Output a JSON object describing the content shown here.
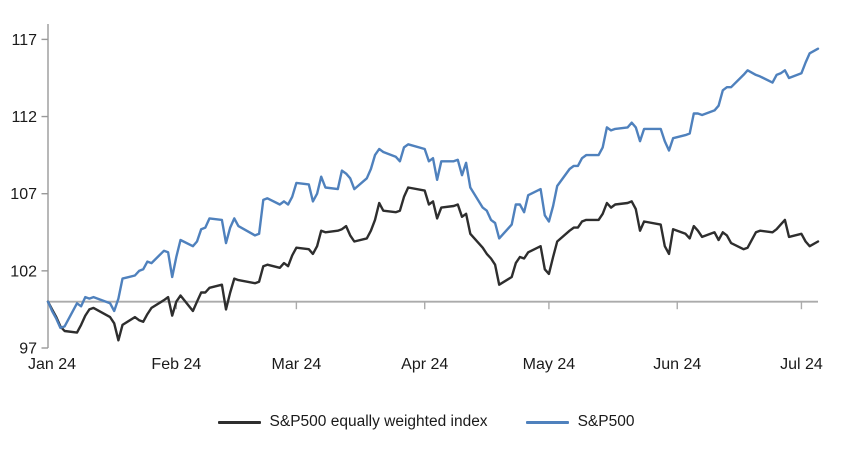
{
  "chart_data": {
    "type": "line",
    "title": "",
    "legend_position": "bottom",
    "grid": false,
    "x_axis": {
      "tick_dates": [
        "2024-01-01",
        "2024-02-01",
        "2024-03-01",
        "2024-04-01",
        "2024-05-01",
        "2024-06-01",
        "2024-07-01"
      ],
      "tick_labels": [
        "Jan 24",
        "Feb 24",
        "Mar 24",
        "Apr 24",
        "May 24",
        "Jun 24",
        "Jul 24"
      ],
      "baseline_value": 100
    },
    "y_axis": {
      "min": 97,
      "max": 118,
      "ticks": [
        97,
        102,
        107,
        112,
        117
      ]
    },
    "dates": [
      "2024-01-01",
      "2024-01-02",
      "2024-01-03",
      "2024-01-04",
      "2024-01-05",
      "2024-01-08",
      "2024-01-09",
      "2024-01-10",
      "2024-01-11",
      "2024-01-12",
      "2024-01-16",
      "2024-01-17",
      "2024-01-18",
      "2024-01-19",
      "2024-01-22",
      "2024-01-23",
      "2024-01-24",
      "2024-01-25",
      "2024-01-26",
      "2024-01-29",
      "2024-01-30",
      "2024-01-31",
      "2024-02-01",
      "2024-02-02",
      "2024-02-05",
      "2024-02-06",
      "2024-02-07",
      "2024-02-08",
      "2024-02-09",
      "2024-02-12",
      "2024-02-13",
      "2024-02-14",
      "2024-02-15",
      "2024-02-16",
      "2024-02-20",
      "2024-02-21",
      "2024-02-22",
      "2024-02-23",
      "2024-02-26",
      "2024-02-27",
      "2024-02-28",
      "2024-02-29",
      "2024-03-01",
      "2024-03-04",
      "2024-03-05",
      "2024-03-06",
      "2024-03-07",
      "2024-03-08",
      "2024-03-11",
      "2024-03-12",
      "2024-03-13",
      "2024-03-14",
      "2024-03-15",
      "2024-03-18",
      "2024-03-19",
      "2024-03-20",
      "2024-03-21",
      "2024-03-22",
      "2024-03-25",
      "2024-03-26",
      "2024-03-27",
      "2024-03-28",
      "2024-04-01",
      "2024-04-02",
      "2024-04-03",
      "2024-04-04",
      "2024-04-05",
      "2024-04-08",
      "2024-04-09",
      "2024-04-10",
      "2024-04-11",
      "2024-04-12",
      "2024-04-15",
      "2024-04-16",
      "2024-04-17",
      "2024-04-18",
      "2024-04-19",
      "2024-04-22",
      "2024-04-23",
      "2024-04-24",
      "2024-04-25",
      "2024-04-26",
      "2024-04-29",
      "2024-04-30",
      "2024-05-01",
      "2024-05-02",
      "2024-05-03",
      "2024-05-06",
      "2024-05-07",
      "2024-05-08",
      "2024-05-09",
      "2024-05-10",
      "2024-05-13",
      "2024-05-14",
      "2024-05-15",
      "2024-05-16",
      "2024-05-17",
      "2024-05-20",
      "2024-05-21",
      "2024-05-22",
      "2024-05-23",
      "2024-05-24",
      "2024-05-28",
      "2024-05-29",
      "2024-05-30",
      "2024-05-31",
      "2024-06-03",
      "2024-06-04",
      "2024-06-05",
      "2024-06-06",
      "2024-06-07",
      "2024-06-10",
      "2024-06-11",
      "2024-06-12",
      "2024-06-13",
      "2024-06-14",
      "2024-06-17",
      "2024-06-18",
      "2024-06-20",
      "2024-06-21",
      "2024-06-24",
      "2024-06-25",
      "2024-06-26",
      "2024-06-27",
      "2024-06-28",
      "2024-07-01",
      "2024-07-02",
      "2024-07-03",
      "2024-07-05"
    ],
    "series": [
      {
        "name": "S&P500 equally weighted index",
        "color": "#2e2e2e",
        "values": [
          100.0,
          99.5,
          99.0,
          98.4,
          98.1,
          98.0,
          98.5,
          99.1,
          99.5,
          99.6,
          99.0,
          98.6,
          97.5,
          98.5,
          99.0,
          98.8,
          98.7,
          99.2,
          99.6,
          100.1,
          100.3,
          99.1,
          100.0,
          100.4,
          99.4,
          100.0,
          100.6,
          100.6,
          100.9,
          101.1,
          99.5,
          100.6,
          101.5,
          101.4,
          101.2,
          101.3,
          102.3,
          102.4,
          102.2,
          102.5,
          102.3,
          103.0,
          103.5,
          103.4,
          103.1,
          103.6,
          104.6,
          104.5,
          104.6,
          104.7,
          104.9,
          104.3,
          103.9,
          104.1,
          104.6,
          105.3,
          106.4,
          105.9,
          105.8,
          105.9,
          106.8,
          107.4,
          107.2,
          106.3,
          106.5,
          105.4,
          106.1,
          106.2,
          106.3,
          105.5,
          105.7,
          104.4,
          103.5,
          103.1,
          102.8,
          102.4,
          101.1,
          101.6,
          102.5,
          102.9,
          102.8,
          103.2,
          103.6,
          102.1,
          101.8,
          102.9,
          103.9,
          104.6,
          104.8,
          104.8,
          105.2,
          105.3,
          105.3,
          105.7,
          106.4,
          106.1,
          106.3,
          106.4,
          106.5,
          106.0,
          104.6,
          105.2,
          105.0,
          103.6,
          103.1,
          104.7,
          104.4,
          104.1,
          104.9,
          104.6,
          104.2,
          104.5,
          104.0,
          104.5,
          104.3,
          103.8,
          103.4,
          103.5,
          104.5,
          104.6,
          104.5,
          104.7,
          105.0,
          105.3,
          104.2,
          104.4,
          103.9,
          103.6,
          103.9
        ]
      },
      {
        "name": "S&P500",
        "color": "#4f81bd",
        "values": [
          100.0,
          99.4,
          98.9,
          98.3,
          98.4,
          99.9,
          99.7,
          100.3,
          100.2,
          100.3,
          99.9,
          99.4,
          100.2,
          101.5,
          101.7,
          102.0,
          102.1,
          102.6,
          102.5,
          103.3,
          103.2,
          101.6,
          102.9,
          104.0,
          103.6,
          103.9,
          104.7,
          104.8,
          105.4,
          105.3,
          103.8,
          104.8,
          105.4,
          104.9,
          104.3,
          104.4,
          106.6,
          106.7,
          106.3,
          106.5,
          106.3,
          106.8,
          107.7,
          107.6,
          106.5,
          107.0,
          108.1,
          107.4,
          107.3,
          108.5,
          108.3,
          108.0,
          107.3,
          108.0,
          108.6,
          109.5,
          109.9,
          109.7,
          109.4,
          109.1,
          110.0,
          110.2,
          109.9,
          109.1,
          109.3,
          107.9,
          109.1,
          109.1,
          109.2,
          108.2,
          109.0,
          107.4,
          106.1,
          105.9,
          105.3,
          105.1,
          104.1,
          105.0,
          106.3,
          106.3,
          105.8,
          106.9,
          107.3,
          105.6,
          105.2,
          106.2,
          107.5,
          108.6,
          108.8,
          108.8,
          109.3,
          109.5,
          109.5,
          110.0,
          111.3,
          111.1,
          111.2,
          111.3,
          111.6,
          111.3,
          110.4,
          111.2,
          111.2,
          110.4,
          109.8,
          110.6,
          110.8,
          110.9,
          112.2,
          112.2,
          112.1,
          112.4,
          112.7,
          113.7,
          113.9,
          113.9,
          114.7,
          115.0,
          114.7,
          114.6,
          114.2,
          114.7,
          114.8,
          115.0,
          114.5,
          114.8,
          115.5,
          116.1,
          116.4
        ]
      }
    ]
  },
  "colors": {
    "background": "#ffffff",
    "y_axis_line": "#999999",
    "baseline": "#ababab",
    "tick_text": "#1a1a1a",
    "equal_weight_line": "#2e2e2e",
    "sp500_line": "#4f81bd"
  }
}
